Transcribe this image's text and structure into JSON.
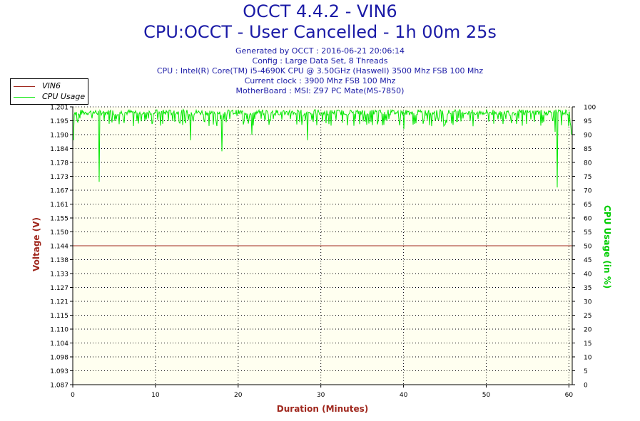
{
  "header": {
    "title": "OCCT 4.4.2 - VIN6",
    "subtitle": "CPU:OCCT - User Cancelled - 1h 00m 25s",
    "info_lines": [
      "Generated by OCCT : 2016-06-21 20:06:14",
      "Config : Large Data Set, 8 Threads",
      "CPU : Intel(R) Core(TM) i5-4690K CPU @ 3.50GHz (Haswell) 3500 Mhz FSB 100 Mhz",
      "Current clock : 3900 Mhz FSB 100 Mhz",
      "MotherBoard : MSI: Z97 PC Mate(MS-7850)"
    ]
  },
  "legend": {
    "items": [
      {
        "label": "VIN6",
        "color": "#a0281e"
      },
      {
        "label": "CPU Usage",
        "color": "#00e600"
      }
    ]
  },
  "chart_data": {
    "type": "line",
    "xlabel": "Duration (Minutes)",
    "ylabel": "Voltage (V)",
    "ylabel_right": "CPU Usage (in %)",
    "xlim": [
      0,
      60.4
    ],
    "ylim": [
      1.087,
      1.201
    ],
    "ylim_right": [
      0,
      100
    ],
    "x_ticks": [
      0,
      10,
      20,
      30,
      40,
      50,
      60
    ],
    "y_ticks_left": [
      "1.087",
      "1.093",
      "1.098",
      "1.104",
      "1.110",
      "1.115",
      "1.121",
      "1.127",
      "1.133",
      "1.138",
      "1.144",
      "1.150",
      "1.155",
      "1.161",
      "1.167",
      "1.173",
      "1.178",
      "1.184",
      "1.190",
      "1.195",
      "1.201"
    ],
    "y_ticks_right": [
      0,
      5,
      10,
      15,
      20,
      25,
      30,
      35,
      40,
      45,
      50,
      55,
      60,
      65,
      70,
      75,
      80,
      85,
      90,
      95,
      100
    ],
    "grid": true,
    "legend_position": "top-left",
    "colors": {
      "plot_bg": "#fffff0",
      "vin6": "#a0281e",
      "cpu": "#00e600"
    },
    "series": [
      {
        "name": "VIN6",
        "axis": "left",
        "x": [
          0,
          60.4
        ],
        "values": [
          1.144,
          1.144
        ]
      },
      {
        "name": "CPU Usage",
        "axis": "right",
        "baseline": 98,
        "x": [
          0.1,
          0.5,
          3.2,
          14.2,
          18.0,
          21.7,
          28.4,
          40.0,
          58.3,
          58.6,
          60.0,
          60.3
        ],
        "values": [
          88,
          95,
          73,
          88,
          84,
          90,
          88,
          92,
          91,
          71,
          93,
          90
        ]
      }
    ]
  }
}
